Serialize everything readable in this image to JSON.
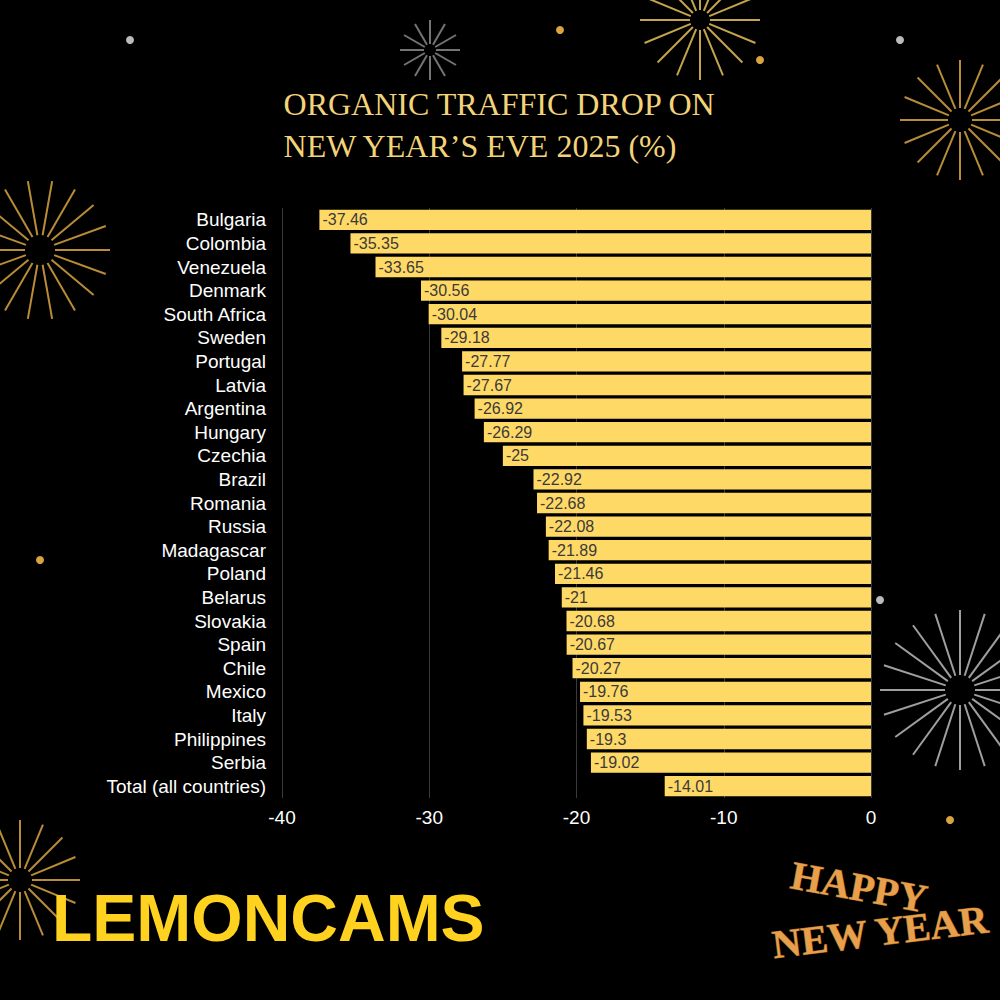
{
  "chart_data": {
    "type": "bar",
    "title": "ORGANIC TRAFFIC DROP ON NEW YEAR’S EVE 2025 (%)",
    "orientation": "horizontal",
    "categories": [
      "Bulgaria",
      "Colombia",
      "Venezuela",
      "Denmark",
      "South Africa",
      "Sweden",
      "Portugal",
      "Latvia",
      "Argentina",
      "Hungary",
      "Czechia",
      "Brazil",
      "Romania",
      "Russia",
      "Madagascar",
      "Poland",
      "Belarus",
      "Slovakia",
      "Spain",
      "Chile",
      "Mexico",
      "Italy",
      "Philippines",
      "Serbia",
      "Total (all countries)"
    ],
    "values": [
      -37.46,
      -35.35,
      -33.65,
      -30.56,
      -30.04,
      -29.18,
      -27.77,
      -27.67,
      -26.92,
      -26.29,
      -25,
      -22.92,
      -22.68,
      -22.08,
      -21.89,
      -21.46,
      -21,
      -20.68,
      -20.67,
      -20.27,
      -19.76,
      -19.53,
      -19.3,
      -19.02,
      -14.01
    ],
    "color": "#FFD966",
    "xlim": [
      -40,
      0
    ],
    "xticks": [
      -40,
      -30,
      -20,
      -10,
      0
    ],
    "grid": true,
    "data_labels": true,
    "annotations": [
      "LEMONCAMS",
      "HAPPY",
      "NEW YEAR"
    ]
  }
}
